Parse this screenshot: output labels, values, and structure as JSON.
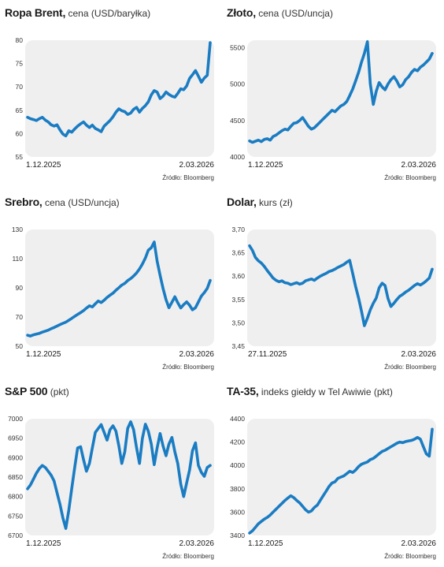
{
  "colors": {
    "line": "#1a7cc2",
    "plot_bg": "#efefef",
    "text": "#1a1a1a"
  },
  "chart_data": [
    {
      "type": "line",
      "title_bold": "Ropa Brent,",
      "title_rest": " cena (USD/baryłka)",
      "ylim": [
        55,
        80
      ],
      "yticks": [
        "55",
        "60",
        "65",
        "70",
        "75",
        "80"
      ],
      "ytick_values": [
        55,
        60,
        65,
        70,
        75,
        80
      ],
      "x_start_label": "1.12.2025",
      "x_end_label": "2.03.2026",
      "source": "Źródło: Bloomberg",
      "values": [
        63.5,
        63.2,
        63.0,
        62.8,
        63.2,
        63.5,
        62.9,
        62.5,
        61.9,
        61.6,
        61.9,
        60.8,
        59.9,
        59.5,
        60.6,
        60.3,
        61.0,
        61.6,
        62.1,
        62.5,
        61.8,
        61.3,
        61.8,
        61.1,
        60.8,
        60.4,
        61.6,
        62.2,
        62.8,
        63.6,
        64.6,
        65.3,
        64.9,
        64.7,
        64.1,
        64.4,
        65.2,
        65.6,
        64.6,
        65.4,
        66.0,
        66.8,
        68.3,
        69.2,
        68.9,
        67.5,
        68.0,
        68.9,
        68.4,
        68.0,
        67.8,
        68.6,
        69.6,
        69.4,
        70.2,
        71.8,
        72.6,
        73.5,
        72.3,
        71.0,
        71.9,
        72.5,
        79.5
      ]
    },
    {
      "type": "line",
      "title_bold": "Złoto,",
      "title_rest": " cena (USD/uncja)",
      "ylim": [
        4000,
        5600
      ],
      "yticks": [
        "4000",
        "4500",
        "5000",
        "5500"
      ],
      "ytick_values": [
        4000,
        4500,
        5000,
        5500
      ],
      "x_start_label": "1.12.2025",
      "x_end_label": "2.03.2026",
      "source": "Źródło: Bloomberg",
      "values": [
        4220,
        4200,
        4215,
        4230,
        4210,
        4240,
        4250,
        4230,
        4280,
        4300,
        4330,
        4360,
        4380,
        4370,
        4420,
        4460,
        4470,
        4500,
        4540,
        4480,
        4420,
        4380,
        4400,
        4440,
        4480,
        4520,
        4560,
        4600,
        4640,
        4620,
        4660,
        4700,
        4720,
        4760,
        4840,
        4930,
        5040,
        5160,
        5300,
        5420,
        5580,
        5000,
        4720,
        4900,
        5020,
        4960,
        4920,
        5000,
        5060,
        5100,
        5040,
        4960,
        4990,
        5060,
        5100,
        5160,
        5200,
        5180,
        5230,
        5260,
        5300,
        5340,
        5420
      ]
    },
    {
      "type": "line",
      "title_bold": "Srebro,",
      "title_rest": " cena (USD/uncja)",
      "ylim": [
        50,
        130
      ],
      "yticks": [
        "50",
        "70",
        "90",
        "110",
        "130"
      ],
      "ytick_values": [
        50,
        70,
        90,
        110,
        130
      ],
      "x_start_label": "1.12.2025",
      "x_end_label": "2.03.2026",
      "source": "Źródło: Bloomberg",
      "values": [
        57.5,
        57.0,
        57.8,
        58.3,
        58.8,
        59.6,
        60.3,
        61.0,
        62.0,
        62.8,
        63.8,
        64.8,
        65.7,
        66.5,
        67.8,
        69.1,
        70.5,
        71.8,
        73.0,
        74.4,
        76.1,
        77.7,
        76.9,
        79.1,
        81.0,
        79.9,
        81.5,
        83.4,
        85.0,
        86.3,
        88.4,
        90.1,
        91.9,
        93.1,
        95.0,
        96.3,
        98.1,
        100.2,
        103.0,
        106.3,
        110.5,
        115.8,
        117.5,
        121.4,
        108.3,
        98.5,
        89.6,
        81.9,
        76.4,
        80.1,
        83.9,
        79.8,
        76.2,
        78.5,
        80.4,
        78.1,
        74.9,
        76.4,
        80.3,
        84.4,
        86.7,
        89.7,
        95.1
      ]
    },
    {
      "type": "line",
      "title_bold": "Dolar,",
      "title_rest": " kurs (zł)",
      "ylim": [
        3.45,
        3.7
      ],
      "yticks": [
        "3,45",
        "3,50",
        "3,55",
        "3,60",
        "3,65",
        "3,70"
      ],
      "ytick_values": [
        3.45,
        3.5,
        3.55,
        3.6,
        3.65,
        3.7
      ],
      "x_start_label": "27.11.2025",
      "x_end_label": "2.03.2026",
      "source": "Źródło: Bloomberg",
      "values": [
        3.665,
        3.655,
        3.64,
        3.633,
        3.628,
        3.621,
        3.612,
        3.604,
        3.596,
        3.591,
        3.588,
        3.59,
        3.586,
        3.585,
        3.582,
        3.584,
        3.586,
        3.583,
        3.585,
        3.59,
        3.592,
        3.594,
        3.591,
        3.596,
        3.6,
        3.603,
        3.606,
        3.61,
        3.612,
        3.615,
        3.619,
        3.622,
        3.625,
        3.63,
        3.634,
        3.606,
        3.578,
        3.553,
        3.525,
        3.494,
        3.51,
        3.528,
        3.542,
        3.553,
        3.575,
        3.585,
        3.58,
        3.552,
        3.535,
        3.542,
        3.55,
        3.557,
        3.561,
        3.566,
        3.57,
        3.575,
        3.58,
        3.584,
        3.581,
        3.585,
        3.59,
        3.596,
        3.615
      ]
    },
    {
      "type": "line",
      "title_bold": "S&P 500",
      "title_rest": " (pkt)",
      "ylim": [
        6700,
        7000
      ],
      "yticks": [
        "6700",
        "6750",
        "6800",
        "6850",
        "6900",
        "6950",
        "7000"
      ],
      "ytick_values": [
        6700,
        6750,
        6800,
        6850,
        6900,
        6950,
        7000
      ],
      "x_start_label": "1.12.2025",
      "x_end_label": "2.03.2026",
      "source": "Źródło: Bloomberg",
      "values": [
        6820,
        6830,
        6845,
        6860,
        6872,
        6880,
        6875,
        6865,
        6855,
        6840,
        6810,
        6780,
        6745,
        6718,
        6765,
        6820,
        6875,
        6925,
        6928,
        6895,
        6865,
        6885,
        6925,
        6965,
        6975,
        6985,
        6965,
        6945,
        6972,
        6982,
        6968,
        6930,
        6885,
        6915,
        6975,
        6992,
        6972,
        6925,
        6885,
        6950,
        6986,
        6968,
        6935,
        6882,
        6925,
        6962,
        6930,
        6905,
        6935,
        6952,
        6915,
        6885,
        6832,
        6800,
        6835,
        6868,
        6918,
        6938,
        6880,
        6862,
        6852,
        6875,
        6880
      ]
    },
    {
      "type": "line",
      "title_bold": "TA-35,",
      "title_rest": " indeks giełdy w Tel Awiwie (pkt)",
      "ylim": [
        3400,
        4400
      ],
      "yticks": [
        "3400",
        "3600",
        "3800",
        "4000",
        "4200",
        "4400"
      ],
      "ytick_values": [
        3400,
        3600,
        3800,
        4000,
        4200,
        4400
      ],
      "x_start_label": "1.12.2025",
      "x_end_label": "2.03.2026",
      "source": "Źródło: Bloomberg",
      "values": [
        3420,
        3440,
        3470,
        3500,
        3520,
        3540,
        3555,
        3575,
        3600,
        3625,
        3650,
        3675,
        3700,
        3720,
        3740,
        3725,
        3700,
        3680,
        3650,
        3620,
        3600,
        3610,
        3640,
        3660,
        3700,
        3740,
        3780,
        3820,
        3850,
        3860,
        3890,
        3900,
        3910,
        3930,
        3950,
        3940,
        3960,
        3990,
        4010,
        4020,
        4030,
        4050,
        4060,
        4080,
        4100,
        4120,
        4130,
        4145,
        4160,
        4175,
        4190,
        4200,
        4195,
        4205,
        4210,
        4215,
        4225,
        4240,
        4225,
        4160,
        4100,
        4080,
        4310
      ]
    }
  ]
}
